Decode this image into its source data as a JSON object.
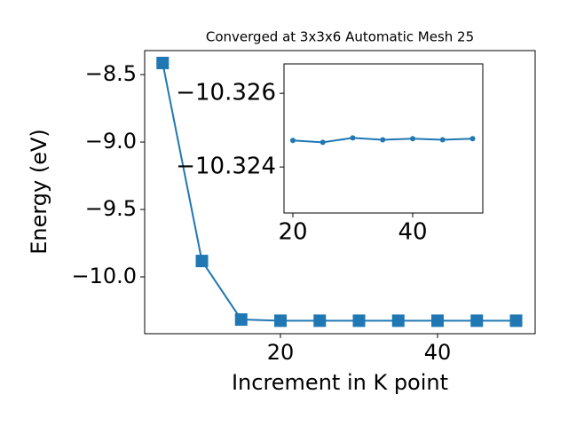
{
  "chart_data": [
    {
      "type": "line",
      "title": "Converged at 3x3x6 Automatic Mesh 25",
      "x_label": "Increment in K point",
      "y_label": "Energy (eV)",
      "x": [
        5,
        10,
        15,
        20,
        25,
        30,
        35,
        40,
        45,
        50
      ],
      "series": [
        {
          "name": "Energy",
          "color": "#1f77b4",
          "marker": "square",
          "values": [
            -8.414,
            -9.882,
            -10.316,
            -10.32472,
            -10.32467,
            -10.32479,
            -10.32474,
            -10.32477,
            -10.32474,
            -10.32477
          ]
        }
      ],
      "xlim": [
        2.71,
        52.43
      ],
      "xticks": [
        20,
        40
      ],
      "ylim": [
        -10.421,
        -8.322
      ],
      "yticks": [
        {
          "value": -8.5,
          "label": "−8.5"
        },
        {
          "value": -9.0,
          "label": "−9.0"
        },
        {
          "value": -9.5,
          "label": "−9.5"
        },
        {
          "value": -10.0,
          "label": "−10.0"
        }
      ]
    },
    {
      "type": "line",
      "x": [
        20,
        25,
        30,
        35,
        40,
        45,
        50
      ],
      "series": [
        {
          "name": "Energy",
          "color": "#1f77b4",
          "marker": "circle",
          "values": [
            -10.32472,
            -10.32467,
            -10.32479,
            -10.32474,
            -10.32477,
            -10.32474,
            -10.32477
          ]
        }
      ],
      "xlim": [
        18.52,
        51.7
      ],
      "xticks": [
        20,
        40
      ],
      "ylim": [
        -10.32275,
        -10.3268
      ],
      "yticks": [
        {
          "value": -10.326,
          "label": "−10.326"
        },
        {
          "value": -10.324,
          "label": "−10.324"
        }
      ]
    }
  ]
}
